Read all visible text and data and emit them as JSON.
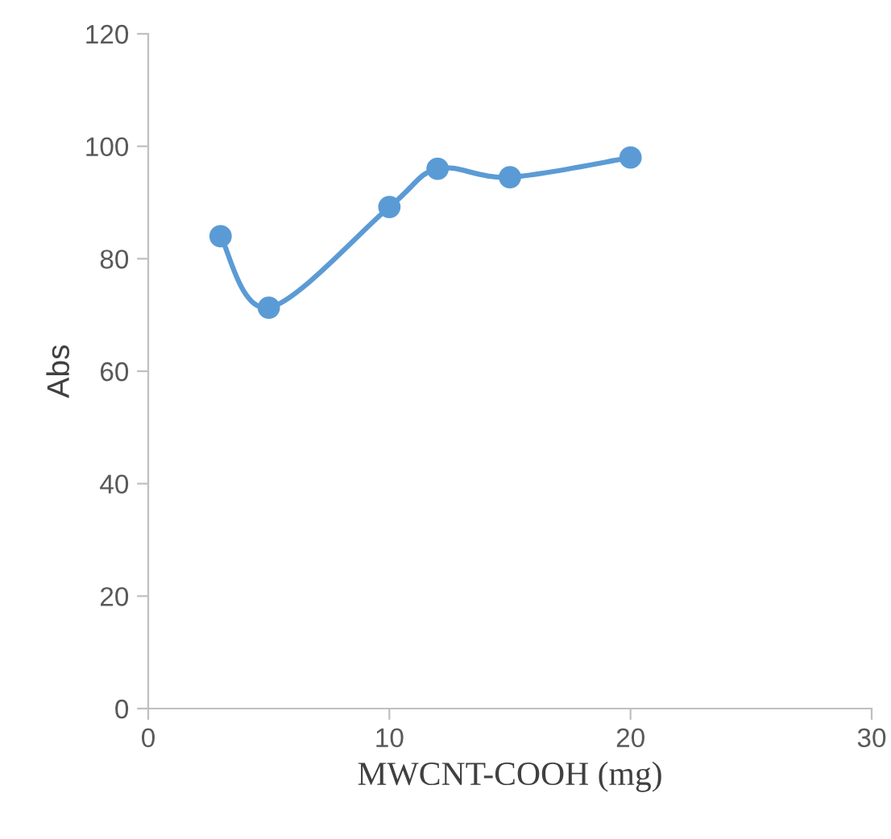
{
  "chart_data": {
    "type": "line",
    "xlabel": "MWCNT-COOH (mg)",
    "ylabel": "Abs",
    "x": [
      3,
      5,
      10,
      12,
      15,
      20
    ],
    "series": [
      {
        "color": "#5b9bd5",
        "values": [
          84,
          71.3,
          89.2,
          96,
          94.5,
          98
        ]
      }
    ],
    "xlim": [
      0,
      30
    ],
    "xticks": [
      0,
      10,
      20,
      30
    ],
    "ylim": [
      0,
      120
    ],
    "yticks": [
      0,
      20,
      40,
      60,
      80,
      100,
      120
    ],
    "grid": false,
    "legend": false,
    "marker": "circle",
    "line_style": "solid"
  }
}
